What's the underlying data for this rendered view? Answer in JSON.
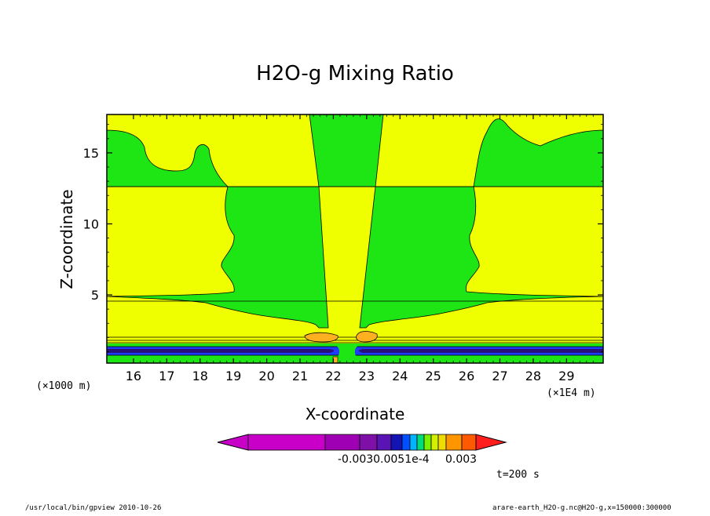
{
  "chart_data": {
    "type": "contour",
    "title": "H2O-g Mixing Ratio",
    "xlabel": "X-coordinate",
    "ylabel": "Z-coordinate",
    "x_units_left": "(×1000 m)",
    "x_units_right": "(×1E4 m)",
    "xlim": [
      15.2,
      30.1
    ],
    "ylim": [
      0.2,
      17.7
    ],
    "x_ticks": [
      "16",
      "17",
      "18",
      "19",
      "20",
      "21",
      "22",
      "23",
      "24",
      "25",
      "26",
      "27",
      "28",
      "29"
    ],
    "y_ticks": [
      "5",
      "10",
      "15"
    ],
    "colorbar_labels": [
      "-0.0030.0051e-4",
      "0.003"
    ],
    "time_label": "t=200 s",
    "colors": {
      "yellow": "#f0ff00",
      "green": "#1ee614",
      "orange": "#ffb020",
      "blue": "#1e3cff",
      "navy": "#28107c"
    },
    "colorbar_colors": [
      "#c800c8",
      "#a000b4",
      "#7e10a8",
      "#5a14b4",
      "#1414b4",
      "#0050ff",
      "#00b4ff",
      "#00dc78",
      "#78f000",
      "#d2f000",
      "#f0dc00",
      "#ff9600",
      "#ff5a00",
      "#ff1e1e"
    ]
  },
  "footer": {
    "left": "/usr/local/bin/gpview  2010-10-26",
    "right": "arare-earth_H2O-g.nc@H2O-g,x=150000:300000"
  }
}
